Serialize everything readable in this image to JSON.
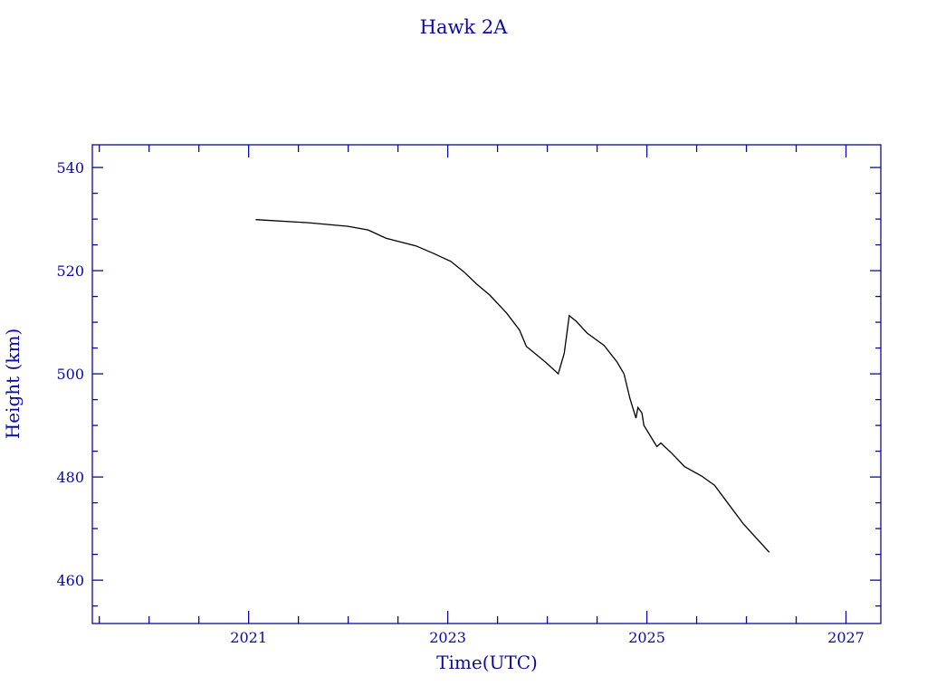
{
  "chart_data": {
    "type": "line",
    "title": "Hawk 2A",
    "xlabel": "Time(UTC)",
    "ylabel": "Height (km)",
    "xlim": [
      2019.43,
      2027.35
    ],
    "ylim": [
      451.6,
      544.4
    ],
    "xticks": [
      2021,
      2023,
      2025,
      2027
    ],
    "xminor_step": 0.5,
    "yticks": [
      460,
      480,
      500,
      520,
      540
    ],
    "yminor_step": 5,
    "grid": false,
    "axis_color": "#0a0aa0",
    "line_color": "#000000",
    "series": [
      {
        "x": [
          2021.07,
          2021.6,
          2022.0,
          2022.2,
          2022.38,
          2022.68,
          2022.85,
          2023.03,
          2023.16,
          2023.29,
          2023.42,
          2023.59,
          2023.72,
          2023.79,
          2023.98,
          2024.11,
          2024.17,
          2024.22,
          2024.29,
          2024.4,
          2024.57,
          2024.7,
          2024.77,
          2024.83,
          2024.89,
          2024.91,
          2024.95,
          2024.97,
          2025.1,
          2025.14,
          2025.25,
          2025.38,
          2025.55,
          2025.68,
          2025.85,
          2025.97,
          2026.23
        ],
        "y": [
          529.9,
          529.3,
          528.6,
          527.9,
          526.3,
          524.8,
          523.4,
          521.8,
          519.8,
          517.4,
          515.3,
          511.8,
          508.5,
          505.3,
          502.3,
          500.0,
          504.0,
          511.3,
          510.2,
          507.9,
          505.5,
          502.3,
          500.0,
          495.2,
          491.4,
          493.5,
          492.4,
          490.0,
          485.9,
          486.6,
          484.6,
          482.0,
          480.2,
          478.4,
          474.0,
          470.9,
          465.4
        ]
      }
    ]
  }
}
